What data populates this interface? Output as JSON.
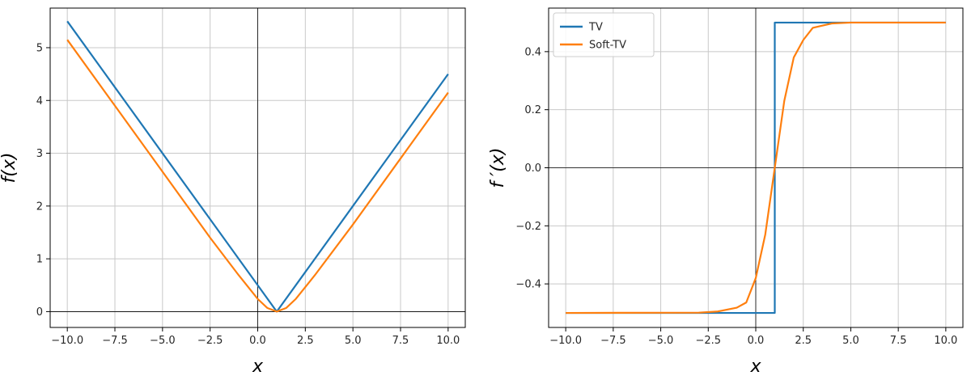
{
  "colors": {
    "tv": "#1f77b4",
    "soft_tv": "#ff7f0e"
  },
  "chart_data": [
    {
      "type": "line",
      "title": "",
      "xlabel": "x",
      "ylabel": "f(x)",
      "xlim": [
        -10.9,
        10.9
      ],
      "ylim": [
        -0.3,
        5.75
      ],
      "xticks": [
        -10.0,
        -7.5,
        -5.0,
        -2.5,
        0.0,
        2.5,
        5.0,
        7.5,
        10.0
      ],
      "xtick_labels": [
        "−10.0",
        "−7.5",
        "−5.0",
        "−2.5",
        "0.0",
        "2.5",
        "5.0",
        "7.5",
        "10.0"
      ],
      "yticks": [
        0,
        1,
        2,
        3,
        4,
        5
      ],
      "ytick_labels": [
        "0",
        "1",
        "2",
        "3",
        "4",
        "5"
      ],
      "grid": true,
      "series": [
        {
          "x": [
            -10,
            -7.5,
            -5,
            -2.5,
            0,
            1,
            2.5,
            5,
            7.5,
            10
          ],
          "y": [
            5.5,
            4.25,
            3.0,
            1.75,
            0.5,
            0.0,
            0.75,
            2.0,
            3.25,
            4.5
          ]
        },
        {
          "x": [
            -10,
            -7.5,
            -5,
            -2.5,
            -1,
            0,
            0.5,
            1,
            1.5,
            2,
            3,
            5,
            7.5,
            10
          ],
          "y": [
            5.15,
            3.9,
            2.65,
            1.4,
            0.69,
            0.24,
            0.07,
            0.0,
            0.07,
            0.24,
            0.69,
            1.65,
            2.9,
            4.15
          ]
        }
      ]
    },
    {
      "type": "line",
      "title": "",
      "xlabel": "x",
      "ylabel": "f ′(x)",
      "xlim": [
        -10.9,
        10.9
      ],
      "ylim": [
        -0.55,
        0.55
      ],
      "xticks": [
        -10.0,
        -7.5,
        -5.0,
        -2.5,
        0.0,
        2.5,
        5.0,
        7.5,
        10.0
      ],
      "xtick_labels": [
        "−10.0",
        "−7.5",
        "−5.0",
        "−2.5",
        "0.0",
        "2.5",
        "5.0",
        "7.5",
        "10.0"
      ],
      "yticks": [
        -0.4,
        -0.2,
        0.0,
        0.2,
        0.4
      ],
      "ytick_labels": [
        "−0.4",
        "−0.2",
        "0.0",
        "0.2",
        "0.4"
      ],
      "grid": true,
      "legend": {
        "placement": "top-left",
        "entries": [
          "TV",
          "Soft-TV"
        ]
      },
      "series": [
        {
          "name": "TV",
          "x": [
            -10,
            1,
            1,
            10
          ],
          "y": [
            -0.5,
            -0.5,
            0.5,
            0.5
          ]
        },
        {
          "name": "Soft-TV",
          "x": [
            -10,
            -3,
            -2,
            -1,
            -0.5,
            0,
            0.5,
            1,
            1.5,
            2,
            2.5,
            3,
            4,
            5,
            10
          ],
          "y": [
            -0.5,
            -0.499,
            -0.495,
            -0.482,
            -0.464,
            -0.38,
            -0.23,
            0.0,
            0.23,
            0.38,
            0.44,
            0.482,
            0.497,
            0.5,
            0.5
          ]
        }
      ]
    }
  ]
}
